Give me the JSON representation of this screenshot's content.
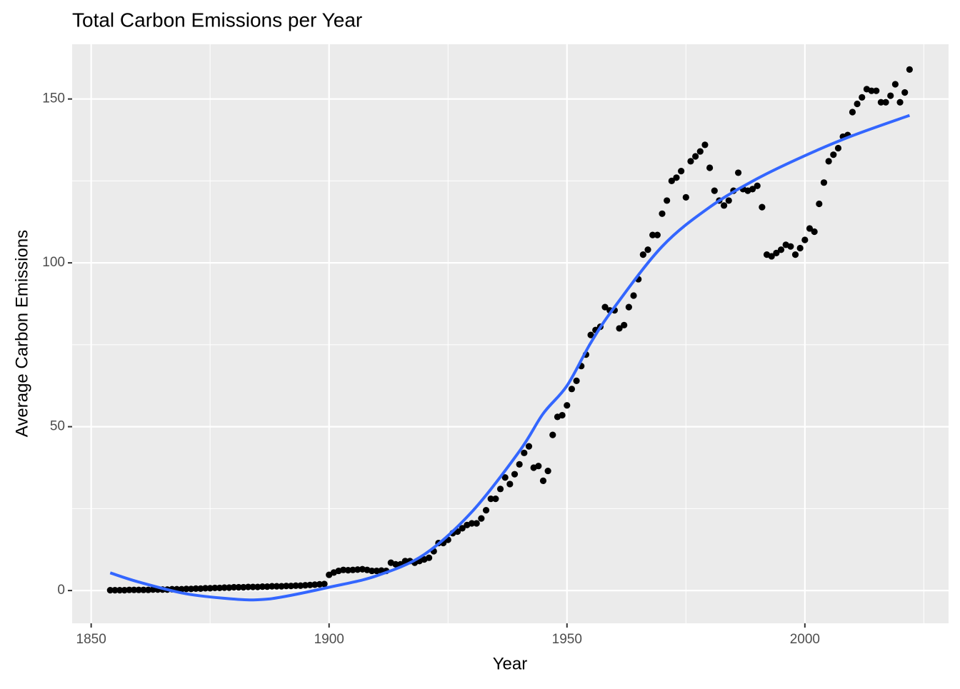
{
  "chart_data": {
    "type": "scatter",
    "title": "Total Carbon Emissions per Year",
    "x_label": "Year",
    "y_label": "Average Carbon Emissions",
    "xlim": [
      1846,
      2030.2
    ],
    "ylim": [
      -10,
      166.7
    ],
    "xticks": [
      1850,
      1900,
      1950,
      2000
    ],
    "yticks": [
      0,
      50,
      100,
      150
    ],
    "xminor": [
      1875,
      1925,
      1975,
      2025
    ],
    "yminor": [
      25,
      75,
      125
    ],
    "grid": true,
    "point_color": "#000000",
    "x": [
      1854,
      1855,
      1856,
      1857,
      1858,
      1859,
      1860,
      1861,
      1862,
      1863,
      1864,
      1865,
      1866,
      1867,
      1868,
      1869,
      1870,
      1871,
      1872,
      1873,
      1874,
      1875,
      1876,
      1877,
      1878,
      1879,
      1880,
      1881,
      1882,
      1883,
      1884,
      1885,
      1886,
      1887,
      1888,
      1889,
      1890,
      1891,
      1892,
      1893,
      1894,
      1895,
      1896,
      1897,
      1898,
      1899,
      1900,
      1901,
      1902,
      1903,
      1904,
      1905,
      1906,
      1907,
      1908,
      1909,
      1910,
      1911,
      1912,
      1913,
      1914,
      1915,
      1916,
      1917,
      1918,
      1919,
      1920,
      1921,
      1922,
      1923,
      1924,
      1925,
      1926,
      1927,
      1928,
      1929,
      1930,
      1931,
      1932,
      1933,
      1934,
      1935,
      1936,
      1937,
      1938,
      1939,
      1940,
      1941,
      1942,
      1943,
      1944,
      1945,
      1946,
      1947,
      1948,
      1949,
      1950,
      1951,
      1952,
      1953,
      1954,
      1955,
      1956,
      1957,
      1958,
      1959,
      1960,
      1961,
      1962,
      1963,
      1964,
      1965,
      1966,
      1967,
      1968,
      1969,
      1970,
      1971,
      1972,
      1973,
      1974,
      1975,
      1976,
      1977,
      1978,
      1979,
      1980,
      1981,
      1982,
      1983,
      1984,
      1985,
      1986,
      1987,
      1988,
      1989,
      1990,
      1991,
      1992,
      1993,
      1994,
      1995,
      1996,
      1997,
      1998,
      1999,
      2000,
      2001,
      2002,
      2003,
      2004,
      2005,
      2006,
      2007,
      2008,
      2009,
      2010,
      2011,
      2012,
      2013,
      2014,
      2015,
      2016,
      2017,
      2018,
      2019,
      2020,
      2021,
      2022
    ],
    "values": [
      0.1,
      0.1,
      0.1,
      0.1,
      0.2,
      0.2,
      0.2,
      0.2,
      0.2,
      0.3,
      0.3,
      0.3,
      0.3,
      0.4,
      0.4,
      0.4,
      0.5,
      0.5,
      0.6,
      0.6,
      0.7,
      0.7,
      0.8,
      0.8,
      0.9,
      0.9,
      1,
      1,
      1,
      1.1,
      1.1,
      1.1,
      1.2,
      1.2,
      1.3,
      1.3,
      1.3,
      1.4,
      1.4,
      1.5,
      1.5,
      1.6,
      1.7,
      1.8,
      1.9,
      2.0,
      4.8,
      5.5,
      6,
      6.3,
      6.2,
      6.3,
      6.4,
      6.5,
      6.3,
      6,
      6,
      6.1,
      6,
      8.5,
      8,
      8,
      9,
      9,
      8.5,
      9,
      9.5,
      10,
      12,
      14.5,
      14.5,
      15.5,
      17.5,
      18,
      19,
      20,
      20.5,
      20.5,
      22,
      24.5,
      28,
      28,
      31,
      34.5,
      32.5,
      35.5,
      38.5,
      42,
      44,
      37.5,
      38,
      33.5,
      36.5,
      47.5,
      53,
      53.5,
      56.5,
      61.5,
      64,
      68.5,
      72,
      78,
      79.5,
      80.5,
      86.5,
      85.5,
      85.5,
      80,
      81,
      86.5,
      90,
      95,
      102.5,
      104,
      108.5,
      108.5,
      115,
      119,
      125,
      126,
      128,
      120,
      131,
      132.5,
      134,
      136,
      129,
      122,
      119,
      117.5,
      119,
      122,
      127.5,
      122.5,
      122,
      122.5,
      123.5,
      117,
      102.5,
      102,
      103,
      104,
      105.5,
      105,
      102.5,
      104.5,
      107,
      110.5,
      109.5,
      118,
      124.5,
      131,
      133,
      135,
      138.5,
      139,
      146,
      148.5,
      150.5,
      153,
      152.5,
      152.5,
      149,
      149,
      151,
      154.5,
      149,
      152,
      159
    ],
    "smooth": {
      "color": "#3366FF",
      "x": [
        1854,
        1860,
        1870,
        1880,
        1885,
        1890,
        1900,
        1910,
        1920,
        1930,
        1940,
        1945,
        1950,
        1955,
        1960,
        1970,
        1980,
        1990,
        2000,
        2010,
        2022
      ],
      "values": [
        5.4,
        2.6,
        -1,
        -2.6,
        -2.8,
        -2,
        1,
        4.5,
        11,
        24,
        42.5,
        54,
        62.5,
        75.6,
        86.5,
        105,
        117,
        125.7,
        132.7,
        138.8,
        145
      ]
    }
  }
}
